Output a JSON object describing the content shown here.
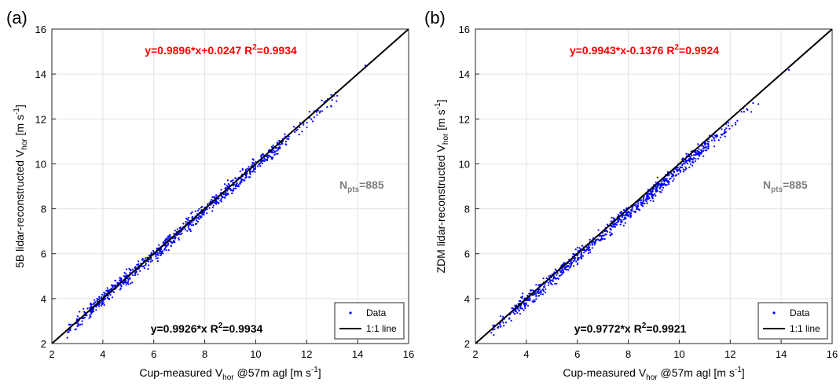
{
  "chart_data": [
    {
      "type": "scatter",
      "panel_label": "(a)",
      "ylabel": {
        "main": "5B lidar-reconstructed V",
        "sub": "hor",
        "unit_pre": " [m s",
        "unit_sup": "-1",
        "unit_post": "]"
      },
      "xlabel": {
        "main": "Cup-measured V",
        "sub": "hor",
        "post": " @57m agl [m s",
        "sup": "-1",
        "end": "]"
      },
      "xlim": [
        2,
        16
      ],
      "ylim": [
        2,
        16
      ],
      "xticks": [
        "2",
        "4",
        "6",
        "8",
        "10",
        "12",
        "14",
        "16"
      ],
      "yticks": [
        "2",
        "4",
        "6",
        "8",
        "10",
        "12",
        "14",
        "16"
      ],
      "grid": true,
      "fit_offset": {
        "pre": "y=0.9896*x+0.0247  R",
        "sup": "2",
        "post": "=0.9934"
      },
      "fit_origin": {
        "pre": "y=0.9926*x  R",
        "sup": "2",
        "post": "=0.9934"
      },
      "n_points": {
        "pre": "N",
        "sub": "pts",
        "post": "=885"
      },
      "series": [
        {
          "name": "Data",
          "color": "#0000ff",
          "slope": 0.9926,
          "intercept": 0.0,
          "x_range": [
            2.6,
            14.4
          ],
          "n": 885
        },
        {
          "name": "1:1 line",
          "color": "#000000",
          "x": [
            2,
            16
          ],
          "y": [
            2,
            16
          ]
        }
      ],
      "legend_position": "bottom-right"
    },
    {
      "type": "scatter",
      "panel_label": "(b)",
      "ylabel": {
        "main": "ZDM lidar-reconstructed V",
        "sub": "hor",
        "unit_pre": " [m s",
        "unit_sup": "-1",
        "unit_post": "]"
      },
      "xlabel": {
        "main": "Cup-measured V",
        "sub": "hor",
        "post": " @57m agl [m s",
        "sup": "-1",
        "end": "]"
      },
      "xlim": [
        2,
        16
      ],
      "ylim": [
        2,
        16
      ],
      "xticks": [
        "2",
        "4",
        "6",
        "8",
        "10",
        "12",
        "14",
        "16"
      ],
      "yticks": [
        "2",
        "4",
        "6",
        "8",
        "10",
        "12",
        "14",
        "16"
      ],
      "grid": true,
      "fit_offset": {
        "pre": "y=0.9943*x-0.1376  R",
        "sup": "2",
        "post": "=0.9924"
      },
      "fit_origin": {
        "pre": "y=0.9772*x  R",
        "sup": "2",
        "post": "=0.9921"
      },
      "n_points": {
        "pre": "N",
        "sub": "pts",
        "post": "=885"
      },
      "series": [
        {
          "name": "Data",
          "color": "#0000ff",
          "slope": 0.9772,
          "intercept": 0.0,
          "x_range": [
            2.6,
            14.4
          ],
          "n": 885
        },
        {
          "name": "1:1 line",
          "color": "#000000",
          "x": [
            2,
            16
          ],
          "y": [
            2,
            16
          ]
        }
      ],
      "legend_position": "bottom-right"
    }
  ]
}
